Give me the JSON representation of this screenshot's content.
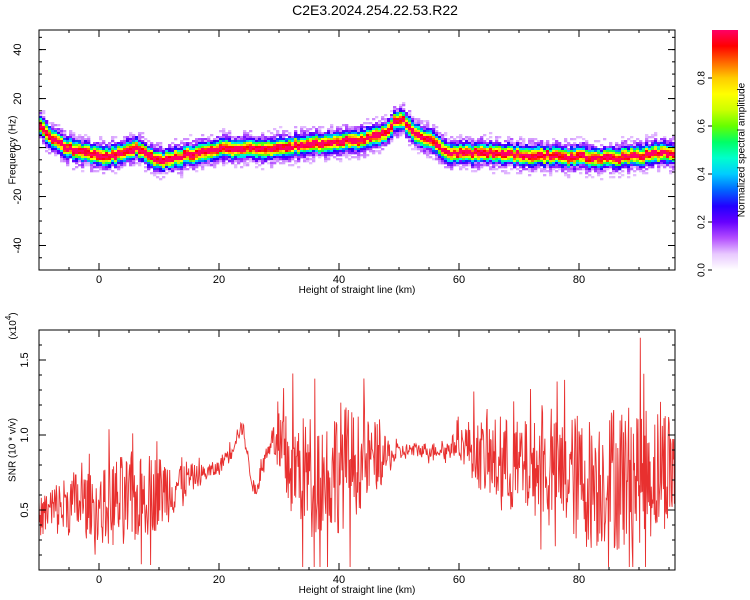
{
  "title": "C2E3.2024.254.22.53.R22",
  "chart_data": [
    {
      "type": "heatmap",
      "xlabel": "Height of straight line (km)",
      "ylabel": "Frequency (Hz)",
      "xlim": [
        -10,
        96
      ],
      "ylim": [
        -50,
        48
      ],
      "xticks": [
        0,
        20,
        40,
        60,
        80
      ],
      "yticks": [
        -40,
        -20,
        0,
        20,
        40
      ],
      "colorbar": {
        "label": "Normalized spectral amplitude",
        "range": [
          0,
          1
        ],
        "ticks": [
          "0.0",
          "0.2",
          "0.4",
          "0.6",
          "0.8"
        ],
        "colors": [
          "#ffffff",
          "#e8c8ff",
          "#b34dff",
          "#6600ff",
          "#2200ff",
          "#0066ff",
          "#00ccff",
          "#00ffcc",
          "#00ff66",
          "#66ff00",
          "#ccff00",
          "#ffff00",
          "#ffcc00",
          "#ff6600",
          "#ff0000",
          "#ff0066"
        ]
      },
      "ridge": {
        "x": [
          -10,
          -8,
          -6,
          -4,
          -2,
          0,
          2,
          4,
          6,
          8,
          10,
          12,
          14,
          16,
          18,
          20,
          22,
          24,
          26,
          28,
          30,
          32,
          34,
          36,
          38,
          40,
          42,
          44,
          46,
          48,
          49,
          50,
          51,
          52,
          54,
          56,
          58,
          60,
          62,
          64,
          66,
          68,
          70,
          72,
          74,
          76,
          78,
          80,
          82,
          84,
          86,
          88,
          90,
          92,
          94,
          96
        ],
        "freq": [
          9,
          4,
          1,
          -1,
          -2,
          -3,
          -3,
          -1,
          0,
          -3,
          -5,
          -4,
          -3,
          -2,
          -1,
          0,
          0,
          0,
          0,
          0,
          0,
          1,
          1,
          2,
          2,
          3,
          3,
          4,
          5,
          7,
          11,
          12,
          10,
          7,
          4,
          2,
          -2,
          -2,
          -2,
          -2,
          -2,
          -2,
          -3,
          -3,
          -3,
          -3,
          -4,
          -3,
          -4,
          -4,
          -4,
          -3,
          -3,
          -2,
          -2,
          -2
        ]
      }
    },
    {
      "type": "line",
      "xlabel": "Height of straight line (km)",
      "ylabel": "SNR (10 * v/v)",
      "scale_note": "(x10",
      "scale_exp": "4",
      "xlim": [
        -10,
        96
      ],
      "ylim": [
        0.1,
        1.7
      ],
      "xticks": [
        0,
        20,
        40,
        60,
        80
      ],
      "yticks": [
        "0.5",
        "1.0",
        "1.5"
      ],
      "series": [
        {
          "color": "#e8302f",
          "x": [
            -10,
            -8,
            -6,
            -4,
            -2,
            0,
            2,
            4,
            6,
            8,
            10,
            12,
            14,
            16,
            18,
            20,
            21,
            22,
            23,
            24,
            25,
            26,
            27,
            28,
            29,
            30,
            32,
            34,
            36,
            38,
            40,
            42,
            44,
            46,
            48,
            50,
            52,
            54,
            56,
            58,
            60,
            62,
            64,
            66,
            68,
            70,
            72,
            74,
            76,
            78,
            80,
            82,
            84,
            86,
            88,
            90,
            92,
            94,
            96
          ],
          "center": [
            0.45,
            0.5,
            0.52,
            0.55,
            0.55,
            0.5,
            0.55,
            0.55,
            0.55,
            0.6,
            0.62,
            0.65,
            0.7,
            0.72,
            0.75,
            0.78,
            0.85,
            0.9,
            1.0,
            1.05,
            0.8,
            0.6,
            0.75,
            0.9,
            1.0,
            0.85,
            0.8,
            0.75,
            0.75,
            0.72,
            0.8,
            0.8,
            0.82,
            0.85,
            0.85,
            0.88,
            0.9,
            0.9,
            0.9,
            0.9,
            0.95,
            0.92,
            0.85,
            0.82,
            0.8,
            0.78,
            0.78,
            0.78,
            0.75,
            0.75,
            0.7,
            0.68,
            0.7,
            0.72,
            0.72,
            0.75,
            0.75,
            0.78,
            0.8
          ],
          "amplitude": [
            0.12,
            0.18,
            0.2,
            0.22,
            0.2,
            0.22,
            0.3,
            0.32,
            0.28,
            0.28,
            0.25,
            0.22,
            0.15,
            0.08,
            0.06,
            0.05,
            0.06,
            0.08,
            0.05,
            0.05,
            0.05,
            0.05,
            0.06,
            0.06,
            0.06,
            0.3,
            0.35,
            0.38,
            0.4,
            0.42,
            0.45,
            0.38,
            0.3,
            0.25,
            0.12,
            0.06,
            0.05,
            0.05,
            0.05,
            0.06,
            0.1,
            0.2,
            0.25,
            0.3,
            0.32,
            0.32,
            0.32,
            0.32,
            0.35,
            0.4,
            0.45,
            0.45,
            0.45,
            0.5,
            0.5,
            0.48,
            0.45,
            0.42,
            0.4
          ],
          "min": 0.12,
          "max": 1.68
        }
      ]
    }
  ]
}
